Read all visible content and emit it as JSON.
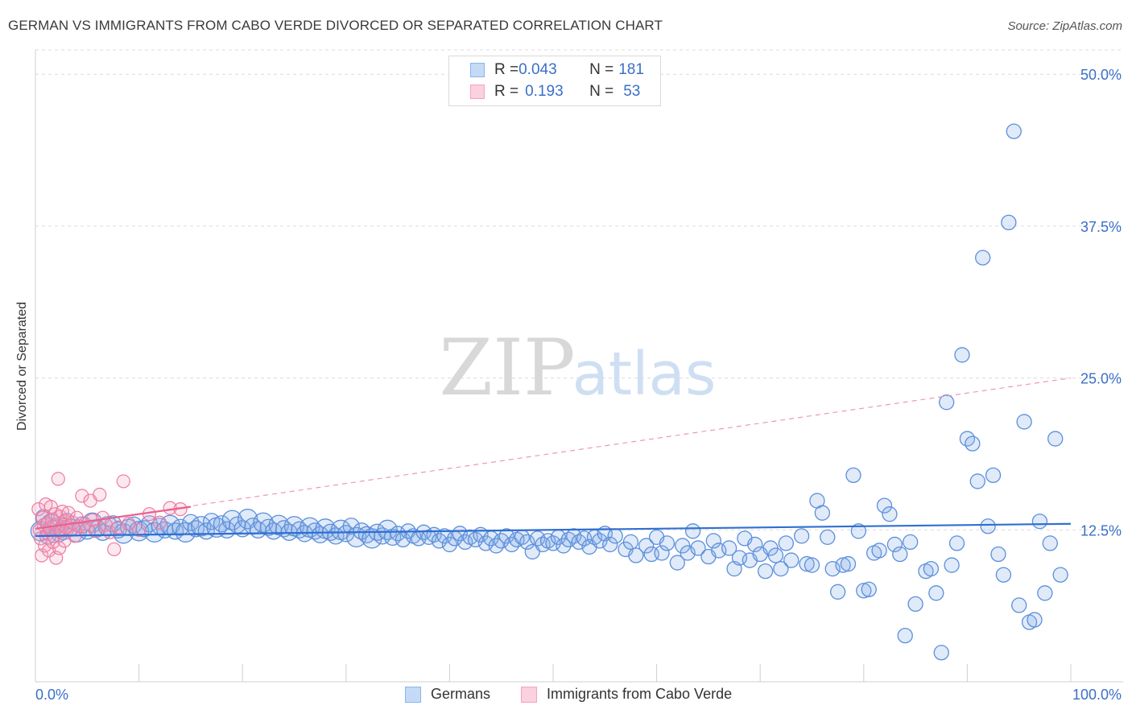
{
  "title": "GERMAN VS IMMIGRANTS FROM CABO VERDE DIVORCED OR SEPARATED CORRELATION CHART",
  "source": "Source: ZipAtlas.com",
  "watermark": {
    "zip": "ZIP",
    "atlas": "atlas"
  },
  "legend": {
    "rows": [
      {
        "r_label": "R = ",
        "r_value": "0.043",
        "n_label": "N = ",
        "n_value": "181",
        "color": "#8ab4ef"
      },
      {
        "r_label": "R = ",
        "r_value": "0.193",
        "n_label": "N = ",
        "n_value": "53",
        "color": "#f5a3bf"
      }
    ]
  },
  "chart_data": {
    "type": "scatter",
    "xlabel": "",
    "ylabel": "Divorced or Separated",
    "xlim": [
      0,
      100
    ],
    "ylim": [
      0,
      52
    ],
    "x_tick_labels": [
      "0.0%",
      "100.0%"
    ],
    "y_ticks": [
      12.5,
      25.0,
      37.5,
      50.0
    ],
    "y_tick_labels": [
      "12.5%",
      "25.0%",
      "37.5%",
      "50.0%"
    ],
    "grid": "horizontal dashed",
    "legend_position": "top-center",
    "series": [
      {
        "name": "Germans",
        "color": "#5b8fdb",
        "fill": "rgba(130,170,230,0.25)",
        "trend": {
          "x": [
            0,
            100
          ],
          "y": [
            12.0,
            13.0
          ]
        },
        "points": [
          [
            0.5,
            12.4
          ],
          [
            0.8,
            13.5
          ],
          [
            1.2,
            12.0
          ],
          [
            1.5,
            13.0
          ],
          [
            2.0,
            12.8
          ],
          [
            2.3,
            12.2
          ],
          [
            2.7,
            12.5
          ],
          [
            3.0,
            13.2
          ],
          [
            3.5,
            12.7
          ],
          [
            4.0,
            12.3
          ],
          [
            4.5,
            12.9
          ],
          [
            5.0,
            12.4
          ],
          [
            5.5,
            13.1
          ],
          [
            6.0,
            12.6
          ],
          [
            6.5,
            12.3
          ],
          [
            7.0,
            12.8
          ],
          [
            7.5,
            13.0
          ],
          [
            8.0,
            12.5
          ],
          [
            8.5,
            12.2
          ],
          [
            9.0,
            12.7
          ],
          [
            9.5,
            12.9
          ],
          [
            10.0,
            12.4
          ],
          [
            10.5,
            12.6
          ],
          [
            11.0,
            13.0
          ],
          [
            11.5,
            12.3
          ],
          [
            12.0,
            12.8
          ],
          [
            12.5,
            12.5
          ],
          [
            13.0,
            12.9
          ],
          [
            13.5,
            12.4
          ],
          [
            14.0,
            12.7
          ],
          [
            14.5,
            12.3
          ],
          [
            15.0,
            13.1
          ],
          [
            15.5,
            12.6
          ],
          [
            16.0,
            12.8
          ],
          [
            16.5,
            12.4
          ],
          [
            17.0,
            13.2
          ],
          [
            17.5,
            12.7
          ],
          [
            18.0,
            13.0
          ],
          [
            18.5,
            12.5
          ],
          [
            19.0,
            13.3
          ],
          [
            19.5,
            12.9
          ],
          [
            20.0,
            12.6
          ],
          [
            20.5,
            13.4
          ],
          [
            21.0,
            12.8
          ],
          [
            21.5,
            12.5
          ],
          [
            22.0,
            13.1
          ],
          [
            22.5,
            12.7
          ],
          [
            23.0,
            12.4
          ],
          [
            23.5,
            12.9
          ],
          [
            24.0,
            12.6
          ],
          [
            24.5,
            12.3
          ],
          [
            25.0,
            12.8
          ],
          [
            25.5,
            12.5
          ],
          [
            26.0,
            12.2
          ],
          [
            26.5,
            12.7
          ],
          [
            27.0,
            12.4
          ],
          [
            27.5,
            12.1
          ],
          [
            28.0,
            12.6
          ],
          [
            28.5,
            12.3
          ],
          [
            29.0,
            12.0
          ],
          [
            29.5,
            12.5
          ],
          [
            30.0,
            12.2
          ],
          [
            30.5,
            12.8
          ],
          [
            31.0,
            11.9
          ],
          [
            31.5,
            12.4
          ],
          [
            32.0,
            12.1
          ],
          [
            32.5,
            11.8
          ],
          [
            33.0,
            12.3
          ],
          [
            33.5,
            12.0
          ],
          [
            34.0,
            12.5
          ],
          [
            34.5,
            11.9
          ],
          [
            35.0,
            12.2
          ],
          [
            35.5,
            11.7
          ],
          [
            36.0,
            12.4
          ],
          [
            36.5,
            12.0
          ],
          [
            37.0,
            11.8
          ],
          [
            37.5,
            12.3
          ],
          [
            38.0,
            11.9
          ],
          [
            38.5,
            12.1
          ],
          [
            39.0,
            11.6
          ],
          [
            39.5,
            12.0
          ],
          [
            40.0,
            11.3
          ],
          [
            40.5,
            11.8
          ],
          [
            41.0,
            12.2
          ],
          [
            41.5,
            11.5
          ],
          [
            42.0,
            11.9
          ],
          [
            42.5,
            11.7
          ],
          [
            43.0,
            12.1
          ],
          [
            43.5,
            11.4
          ],
          [
            44.0,
            11.8
          ],
          [
            44.5,
            11.2
          ],
          [
            45.0,
            11.6
          ],
          [
            45.5,
            12.0
          ],
          [
            46.0,
            11.3
          ],
          [
            46.5,
            11.7
          ],
          [
            47.0,
            11.9
          ],
          [
            47.5,
            11.5
          ],
          [
            48.0,
            10.7
          ],
          [
            48.5,
            11.8
          ],
          [
            49.0,
            11.3
          ],
          [
            49.5,
            11.6
          ],
          [
            50.0,
            11.4
          ],
          [
            50.5,
            11.9
          ],
          [
            51.0,
            11.2
          ],
          [
            51.5,
            11.7
          ],
          [
            52.0,
            12.0
          ],
          [
            52.5,
            11.5
          ],
          [
            53.0,
            11.8
          ],
          [
            53.5,
            11.1
          ],
          [
            54.0,
            11.9
          ],
          [
            54.5,
            11.6
          ],
          [
            55.0,
            12.2
          ],
          [
            55.5,
            11.3
          ],
          [
            56.0,
            12.0
          ],
          [
            57.0,
            10.9
          ],
          [
            57.5,
            11.5
          ],
          [
            58.0,
            10.4
          ],
          [
            59.0,
            11.2
          ],
          [
            59.5,
            10.5
          ],
          [
            60.0,
            11.9
          ],
          [
            60.5,
            10.6
          ],
          [
            61.0,
            11.4
          ],
          [
            62.0,
            9.8
          ],
          [
            62.5,
            11.2
          ],
          [
            63.0,
            10.6
          ],
          [
            63.5,
            12.4
          ],
          [
            64.0,
            11.0
          ],
          [
            65.0,
            10.3
          ],
          [
            65.5,
            11.6
          ],
          [
            66.0,
            10.8
          ],
          [
            67.0,
            11.0
          ],
          [
            67.5,
            9.3
          ],
          [
            68.0,
            10.2
          ],
          [
            68.5,
            11.8
          ],
          [
            69.0,
            10.0
          ],
          [
            69.5,
            11.3
          ],
          [
            70.0,
            10.5
          ],
          [
            70.5,
            9.1
          ],
          [
            71.0,
            11.0
          ],
          [
            71.5,
            10.4
          ],
          [
            72.0,
            9.3
          ],
          [
            72.5,
            11.4
          ],
          [
            73.0,
            10.0
          ],
          [
            74.0,
            12.0
          ],
          [
            74.5,
            9.7
          ],
          [
            75.0,
            9.6
          ],
          [
            75.5,
            14.9
          ],
          [
            76.0,
            13.9
          ],
          [
            76.5,
            11.9
          ],
          [
            77.0,
            9.3
          ],
          [
            77.5,
            7.4
          ],
          [
            78.0,
            9.6
          ],
          [
            78.5,
            9.7
          ],
          [
            79.0,
            17.0
          ],
          [
            79.5,
            12.4
          ],
          [
            80.0,
            7.5
          ],
          [
            80.5,
            7.6
          ],
          [
            81.0,
            10.6
          ],
          [
            81.5,
            10.8
          ],
          [
            82.0,
            14.5
          ],
          [
            82.5,
            13.8
          ],
          [
            83.0,
            11.3
          ],
          [
            83.5,
            10.5
          ],
          [
            84.0,
            3.8
          ],
          [
            84.5,
            11.5
          ],
          [
            85.0,
            6.4
          ],
          [
            86.0,
            9.1
          ],
          [
            86.5,
            9.3
          ],
          [
            87.0,
            7.3
          ],
          [
            87.5,
            2.4
          ],
          [
            88.0,
            23.0
          ],
          [
            88.5,
            9.6
          ],
          [
            89.0,
            11.4
          ],
          [
            89.5,
            26.9
          ],
          [
            90.0,
            20.0
          ],
          [
            90.5,
            19.6
          ],
          [
            91.0,
            16.5
          ],
          [
            91.5,
            34.9
          ],
          [
            92.0,
            12.8
          ],
          [
            92.5,
            17.0
          ],
          [
            93.0,
            10.5
          ],
          [
            93.5,
            8.8
          ],
          [
            94.0,
            37.8
          ],
          [
            94.5,
            45.3
          ],
          [
            95.0,
            6.3
          ],
          [
            95.5,
            21.4
          ],
          [
            96.0,
            4.9
          ],
          [
            96.5,
            5.1
          ],
          [
            97.0,
            13.2
          ],
          [
            97.5,
            7.3
          ],
          [
            98.0,
            11.4
          ],
          [
            98.5,
            20.0
          ],
          [
            99.0,
            8.8
          ]
        ]
      },
      {
        "name": "Immigrants from Cabo Verde",
        "color": "#ee7aa0",
        "fill": "rgba(245,163,191,0.25)",
        "trend": {
          "x": [
            0,
            15
          ],
          "y": [
            12.6,
            14.4
          ]
        },
        "trend_extended": {
          "x": [
            0,
            100
          ],
          "y": [
            12.6,
            25.0
          ]
        },
        "points": [
          [
            0.3,
            14.2
          ],
          [
            0.4,
            12.5
          ],
          [
            0.5,
            11.8
          ],
          [
            0.6,
            10.4
          ],
          [
            0.7,
            13.5
          ],
          [
            0.8,
            12.9
          ],
          [
            0.9,
            11.2
          ],
          [
            1.0,
            14.6
          ],
          [
            1.1,
            13.0
          ],
          [
            1.2,
            12.2
          ],
          [
            1.3,
            10.8
          ],
          [
            1.4,
            12.6
          ],
          [
            1.5,
            14.4
          ],
          [
            1.6,
            13.3
          ],
          [
            1.7,
            11.5
          ],
          [
            1.8,
            12.0
          ],
          [
            1.9,
            13.8
          ],
          [
            2.0,
            10.2
          ],
          [
            2.1,
            12.8
          ],
          [
            2.2,
            16.7
          ],
          [
            2.3,
            11.0
          ],
          [
            2.4,
            13.6
          ],
          [
            2.5,
            12.4
          ],
          [
            2.6,
            14.0
          ],
          [
            2.7,
            12.9
          ],
          [
            2.8,
            11.6
          ],
          [
            2.9,
            13.2
          ],
          [
            3.0,
            12.7
          ],
          [
            3.2,
            13.9
          ],
          [
            3.4,
            12.5
          ],
          [
            3.6,
            13.1
          ],
          [
            3.8,
            12.0
          ],
          [
            4.0,
            13.5
          ],
          [
            4.2,
            12.8
          ],
          [
            4.5,
            15.3
          ],
          [
            4.8,
            13.0
          ],
          [
            5.0,
            12.6
          ],
          [
            5.3,
            14.9
          ],
          [
            5.5,
            13.3
          ],
          [
            5.8,
            12.4
          ],
          [
            6.2,
            15.4
          ],
          [
            6.5,
            13.5
          ],
          [
            6.8,
            12.9
          ],
          [
            7.2,
            12.3
          ],
          [
            7.6,
            10.9
          ],
          [
            8.0,
            12.7
          ],
          [
            8.5,
            16.5
          ],
          [
            9.0,
            13.0
          ],
          [
            10.0,
            12.5
          ],
          [
            11.0,
            13.8
          ],
          [
            12.0,
            13.1
          ],
          [
            13.0,
            14.3
          ],
          [
            14.0,
            14.2
          ]
        ]
      }
    ]
  },
  "bottom_legend": [
    {
      "label": "Germans",
      "color": "#8ab4ef"
    },
    {
      "label": "Immigrants from Cabo Verde",
      "color": "#f5a3bf"
    }
  ]
}
